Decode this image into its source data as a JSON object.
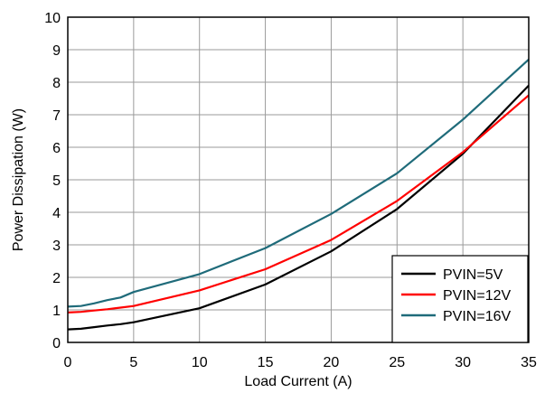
{
  "chart_data": {
    "type": "line",
    "title": "",
    "xlabel": "Load Current (A)",
    "ylabel": "Power Dissipation (W)",
    "xlim": [
      0,
      35
    ],
    "ylim": [
      0,
      10
    ],
    "xticks": [
      0,
      5,
      10,
      15,
      20,
      25,
      30,
      35
    ],
    "yticks": [
      0,
      1,
      2,
      3,
      4,
      5,
      6,
      7,
      8,
      9,
      10
    ],
    "grid": true,
    "legend_position": "bottom-right",
    "series": [
      {
        "name": "PVIN=5V",
        "color": "#000000",
        "x": [
          0,
          1,
          2,
          3,
          4,
          5,
          10,
          15,
          20,
          25,
          30,
          35
        ],
        "y": [
          0.4,
          0.42,
          0.47,
          0.52,
          0.56,
          0.62,
          1.05,
          1.78,
          2.8,
          4.1,
          5.8,
          7.9
        ]
      },
      {
        "name": "PVIN=12V",
        "color": "#ff0000",
        "x": [
          0,
          1,
          2,
          3,
          4,
          5,
          10,
          15,
          20,
          25,
          30,
          35
        ],
        "y": [
          0.92,
          0.94,
          0.98,
          1.02,
          1.07,
          1.12,
          1.6,
          2.25,
          3.15,
          4.35,
          5.85,
          7.6
        ]
      },
      {
        "name": "PVIN=16V",
        "color": "#1f6b7a",
        "x": [
          0,
          1,
          2,
          3,
          4,
          5,
          10,
          15,
          20,
          25,
          30,
          35
        ],
        "y": [
          1.1,
          1.12,
          1.2,
          1.3,
          1.38,
          1.55,
          2.1,
          2.9,
          3.95,
          5.2,
          6.85,
          8.7
        ]
      }
    ]
  }
}
